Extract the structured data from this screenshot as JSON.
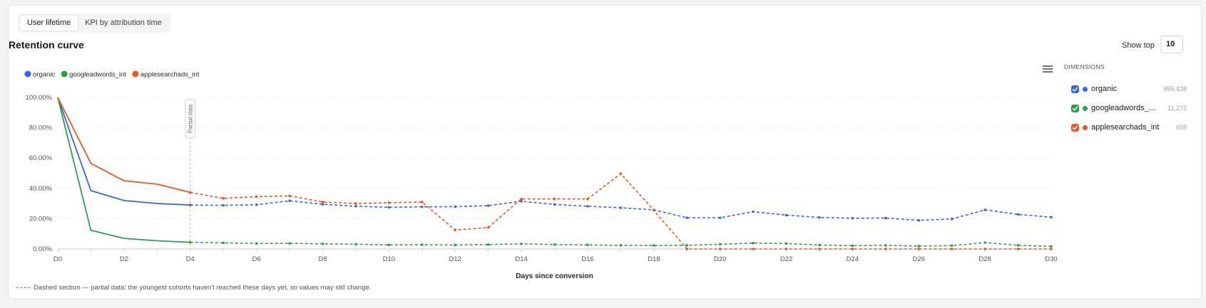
{
  "tabs": [
    {
      "label": "User lifetime",
      "active": true
    },
    {
      "label": "KPI by attribution time",
      "active": false
    }
  ],
  "title": "Retention curve",
  "show_top": {
    "label": "Show top",
    "value": "10"
  },
  "dimensions": {
    "header": "DIMENSIONS",
    "items": [
      {
        "name": "organic",
        "count": "855,438",
        "color": "#3366e0",
        "checked": true
      },
      {
        "name": "googleadwords_...",
        "count": "11,272",
        "color": "#2ca048",
        "checked": true
      },
      {
        "name": "applesearchads_int",
        "count": "658",
        "color": "#e8581e",
        "checked": true
      }
    ]
  },
  "footnote": "Dashed section — partial data: the youngest cohorts haven't reached these days yet, so values may still change.",
  "chart_data": {
    "type": "line",
    "xlabel": "Days since conversion",
    "ylabel": "",
    "ylim": [
      0,
      100
    ],
    "y_ticks": [
      "0.00%",
      "20.00%",
      "40.00%",
      "60.00%",
      "80.00%",
      "100.00%"
    ],
    "x_ticks": [
      "D0",
      "D2",
      "D4",
      "D6",
      "D8",
      "D10",
      "D12",
      "D14",
      "D16",
      "D18",
      "D20",
      "D22",
      "D24",
      "D26",
      "D28",
      "D30"
    ],
    "x": [
      0,
      1,
      2,
      3,
      4,
      5,
      6,
      7,
      8,
      9,
      10,
      11,
      12,
      13,
      14,
      15,
      16,
      17,
      18,
      19,
      20,
      21,
      22,
      23,
      24,
      25,
      26,
      27,
      28,
      29,
      30
    ],
    "grid": true,
    "legend": "top-left",
    "partial_from": 4,
    "partial_label": "Partial data",
    "series": [
      {
        "name": "organic",
        "color": "#3366e0",
        "values": [
          100,
          38.5,
          32,
          30,
          29,
          28.8,
          29.2,
          31.8,
          29.5,
          28.2,
          27.5,
          27.8,
          27.9,
          28.6,
          31.5,
          29.4,
          28.2,
          27.2,
          25.8,
          20.6,
          20.6,
          24.6,
          22.3,
          20.8,
          20.3,
          20.4,
          18.9,
          19.8,
          25.8,
          22.8,
          21
        ]
      },
      {
        "name": "googleadwords_int",
        "color": "#2ca048",
        "values": [
          100,
          12.3,
          7,
          5.4,
          4.4,
          4,
          3.6,
          3.7,
          3.4,
          3.1,
          2.7,
          2.8,
          2.6,
          2.9,
          3.4,
          2.9,
          2.7,
          2.4,
          2.3,
          2.4,
          3.1,
          3.9,
          3.6,
          2.6,
          2.2,
          2.4,
          1.9,
          2.2,
          4.2,
          2.4,
          1.7
        ]
      },
      {
        "name": "applesearchads_int",
        "color": "#e8581e",
        "values": [
          100,
          56.5,
          45,
          42.8,
          37.3,
          33.4,
          34.5,
          35,
          31,
          30,
          30.5,
          31,
          12.5,
          14.2,
          33,
          33,
          33,
          49.7,
          25.5,
          0,
          0,
          0,
          0,
          0,
          0,
          0,
          0,
          0,
          0,
          0,
          0
        ]
      }
    ]
  }
}
